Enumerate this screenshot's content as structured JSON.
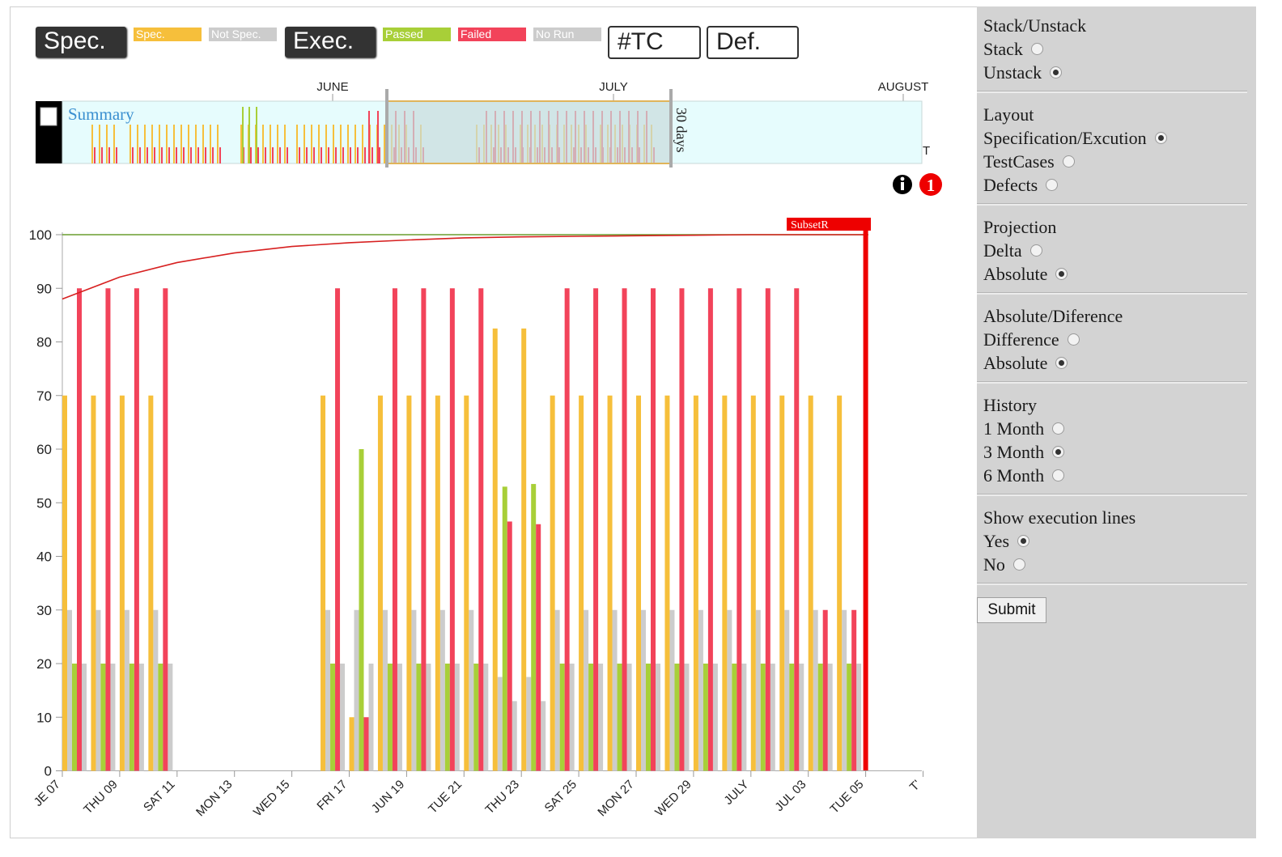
{
  "top_controls": {
    "spec_button": "Spec.",
    "exec_button": "Exec.",
    "tc_button": "#TC",
    "def_button": "Def.",
    "legend": [
      {
        "label": "Spec.",
        "color": "#f6bf3b"
      },
      {
        "label": "Not Spec.",
        "color": "#cccccc"
      },
      {
        "label": "Passed",
        "color": "#a8cf38"
      },
      {
        "label": "Failed",
        "color": "#f2435a"
      },
      {
        "label": "No Run",
        "color": "#cccccc"
      }
    ]
  },
  "overview": {
    "summary_label": "Summary",
    "months": [
      "JUNE",
      "JULY",
      "AUGUST"
    ],
    "window_label": "30 days",
    "edge_label": "T",
    "info_icon": "info-circle-icon",
    "alert_badge": "1"
  },
  "chart_data": {
    "type": "bar",
    "y_ticks": [
      0,
      10,
      20,
      30,
      40,
      50,
      60,
      70,
      80,
      90,
      100
    ],
    "ylim": [
      0,
      100
    ],
    "x_tick_labels": [
      "JE 07",
      "THU 09",
      "SAT 11",
      "MON 13",
      "WED 15",
      "FRI 17",
      "JUN 19",
      "TUE 21",
      "THU 23",
      "SAT 25",
      "MON 27",
      "WED 29",
      "JULY",
      "JUL 03",
      "TUE 05",
      "T'"
    ],
    "series_colors": {
      "spec": "#f6bf3b",
      "not_spec": "#cccccc",
      "passed": "#a8cf38",
      "failed": "#f2435a",
      "no_run": "#cccccc"
    },
    "bar_groups": [
      {
        "day": 0.0,
        "spec": 70,
        "not_spec": 30,
        "passed": 20,
        "failed": 90,
        "no_run": 20
      },
      {
        "day": 1.0,
        "spec": 70,
        "not_spec": 30,
        "passed": 20,
        "failed": 90,
        "no_run": 20
      },
      {
        "day": 2.0,
        "spec": 70,
        "not_spec": 30,
        "passed": 20,
        "failed": 90,
        "no_run": 20
      },
      {
        "day": 3.0,
        "spec": 70,
        "not_spec": 30,
        "passed": 20,
        "failed": 90,
        "no_run": 20
      },
      {
        "day": 9.0,
        "spec": 70,
        "not_spec": 30,
        "passed": 20,
        "failed": 90,
        "no_run": 20
      },
      {
        "day": 10.0,
        "spec": 10,
        "not_spec": 30,
        "passed": 60,
        "failed": 10,
        "no_run": 20
      },
      {
        "day": 11.0,
        "spec": 70,
        "not_spec": 30,
        "passed": 20,
        "failed": 90,
        "no_run": 20
      },
      {
        "day": 12.0,
        "spec": 70,
        "not_spec": 30,
        "passed": 20,
        "failed": 90,
        "no_run": 20
      },
      {
        "day": 13.0,
        "spec": 70,
        "not_spec": 30,
        "passed": 20,
        "failed": 90,
        "no_run": 20
      },
      {
        "day": 14.0,
        "spec": 70,
        "not_spec": 30,
        "passed": 20,
        "failed": 90,
        "no_run": 20
      },
      {
        "day": 15.0,
        "spec": 82.5,
        "not_spec": 17.5,
        "passed": 53,
        "failed": 46.5,
        "no_run": 13
      },
      {
        "day": 16.0,
        "spec": 82.5,
        "not_spec": 17.5,
        "passed": 53.5,
        "failed": 46,
        "no_run": 13
      },
      {
        "day": 17.0,
        "spec": 70,
        "not_spec": 30,
        "passed": 20,
        "failed": 90,
        "no_run": 20
      },
      {
        "day": 18.0,
        "spec": 70,
        "not_spec": 30,
        "passed": 20,
        "failed": 90,
        "no_run": 20
      },
      {
        "day": 19.0,
        "spec": 70,
        "not_spec": 30,
        "passed": 20,
        "failed": 90,
        "no_run": 20
      },
      {
        "day": 20.0,
        "spec": 70,
        "not_spec": 30,
        "passed": 20,
        "failed": 90,
        "no_run": 20
      },
      {
        "day": 21.0,
        "spec": 70,
        "not_spec": 30,
        "passed": 20,
        "failed": 90,
        "no_run": 20
      },
      {
        "day": 22.0,
        "spec": 70,
        "not_spec": 30,
        "passed": 20,
        "failed": 90,
        "no_run": 20
      },
      {
        "day": 23.0,
        "spec": 70,
        "not_spec": 30,
        "passed": 20,
        "failed": 90,
        "no_run": 20
      },
      {
        "day": 24.0,
        "spec": 70,
        "not_spec": 30,
        "passed": 20,
        "failed": 90,
        "no_run": 20
      },
      {
        "day": 25.0,
        "spec": 70,
        "not_spec": 30,
        "passed": 20,
        "failed": 90,
        "no_run": 20
      },
      {
        "day": 26.0,
        "spec": 70,
        "not_spec": 30,
        "passed": 20,
        "failed": 30,
        "no_run": 20
      },
      {
        "day": 27.0,
        "spec": 70,
        "not_spec": 30,
        "passed": 20,
        "failed": 30,
        "no_run": 20
      }
    ],
    "reference_line": {
      "value": 100,
      "color": "#6a9e2f"
    },
    "projection_curve": {
      "color": "#d72020",
      "x": [
        0,
        2,
        4,
        6,
        8,
        10,
        12,
        14,
        16,
        18,
        20,
        22,
        24,
        26,
        28
      ],
      "y": [
        88,
        92.1,
        94.8,
        96.6,
        97.8,
        98.5,
        99.0,
        99.4,
        99.6,
        99.7,
        99.8,
        99.9,
        100,
        100,
        100
      ]
    },
    "marker": {
      "label": "SubsetR",
      "day": 28.0,
      "color": "#ee0000"
    }
  },
  "sidebar": {
    "groups": [
      {
        "title": "Stack/Unstack",
        "options": [
          {
            "label": "Stack",
            "checked": false
          },
          {
            "label": "Unstack",
            "checked": true
          }
        ]
      },
      {
        "title": "Layout",
        "options": [
          {
            "label": "Specification/Excution",
            "checked": true
          },
          {
            "label": "TestCases",
            "checked": false
          },
          {
            "label": "Defects",
            "checked": false
          }
        ]
      },
      {
        "title": "Projection",
        "options": [
          {
            "label": "Delta",
            "checked": false
          },
          {
            "label": "Absolute",
            "checked": true
          }
        ]
      },
      {
        "title": "Absolute/Diference",
        "options": [
          {
            "label": "Difference",
            "checked": false
          },
          {
            "label": "Absolute",
            "checked": true
          }
        ]
      },
      {
        "title": "History",
        "options": [
          {
            "label": "1 Month",
            "checked": false
          },
          {
            "label": "3 Month",
            "checked": true
          },
          {
            "label": "6 Month",
            "checked": false
          }
        ]
      },
      {
        "title": "Show execution lines",
        "options": [
          {
            "label": "Yes",
            "checked": true
          },
          {
            "label": "No",
            "checked": false
          }
        ]
      }
    ],
    "submit_label": "Submit"
  }
}
